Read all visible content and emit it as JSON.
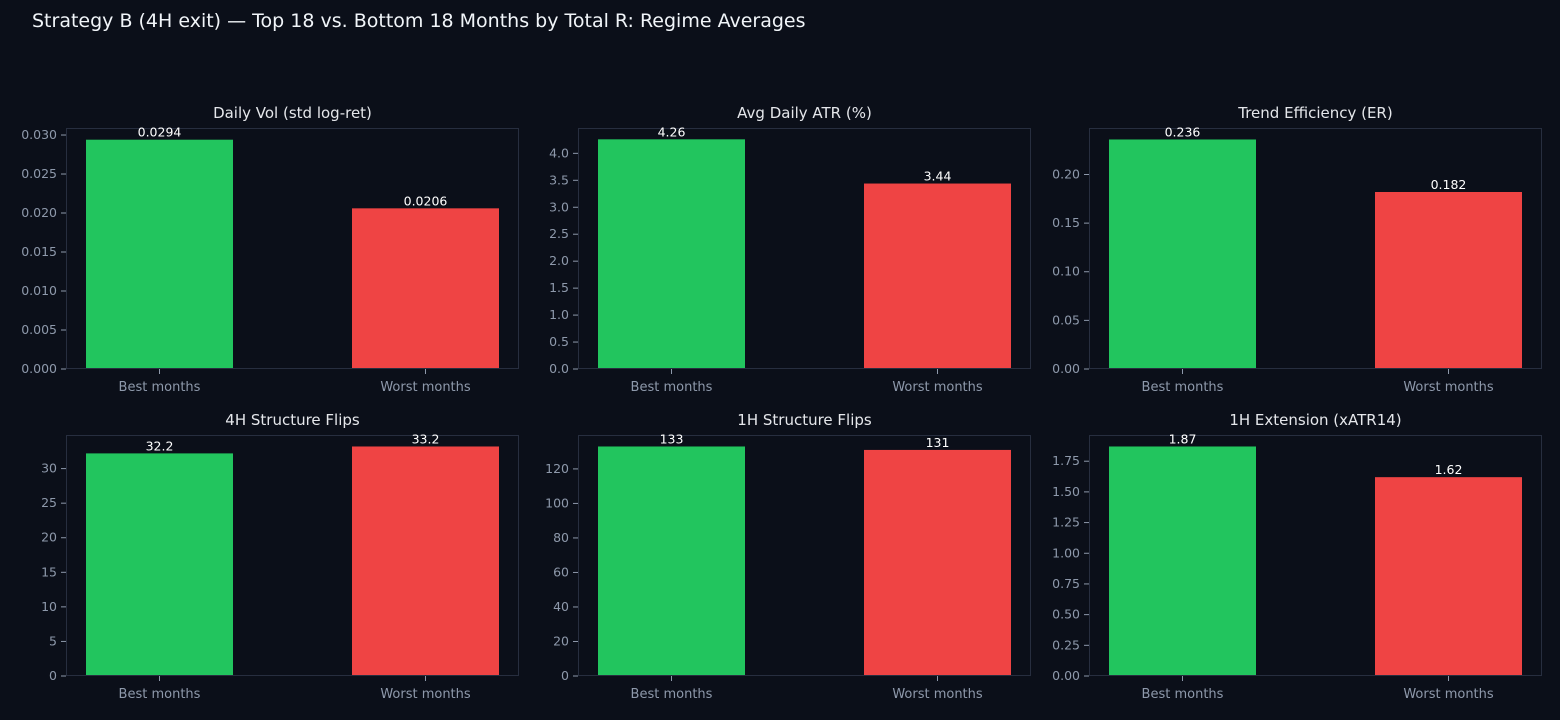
{
  "suptitle": "Strategy B (4H exit) — Top 18 vs. Bottom 18 Months by Total R: Regime Averages",
  "colors": {
    "background": "#0b0f19",
    "axes_face": "#0b0f19",
    "axes_edge": "#272e3f",
    "tick_label": "#8e99ab",
    "title": "#e5e7eb",
    "value_label": "#ffffff",
    "best": "#22c55e",
    "worst": "#ef4444"
  },
  "chart_data": [
    {
      "type": "bar",
      "title": "Daily Vol (std log-ret)",
      "categories": [
        "Best months",
        "Worst months"
      ],
      "values": [
        0.0294,
        0.0206
      ],
      "value_labels": [
        "0.0294",
        "0.0206"
      ],
      "yticks": [
        0,
        0.005,
        0.01,
        0.015,
        0.02,
        0.025,
        0.03
      ],
      "ytick_labels": [
        "0.000",
        "0.005",
        "0.010",
        "0.015",
        "0.020",
        "0.025",
        "0.030"
      ],
      "ylim": [
        0,
        0.0309
      ],
      "bar_colors": [
        "#22c55e",
        "#ef4444"
      ]
    },
    {
      "type": "bar",
      "title": "Avg Daily ATR (%)",
      "categories": [
        "Best months",
        "Worst months"
      ],
      "values": [
        4.26,
        3.44
      ],
      "value_labels": [
        "4.26",
        "3.44"
      ],
      "yticks": [
        0,
        0.5,
        1,
        1.5,
        2,
        2.5,
        3,
        3.5,
        4
      ],
      "ytick_labels": [
        "0.0",
        "0.5",
        "1.0",
        "1.5",
        "2.0",
        "2.5",
        "3.0",
        "3.5",
        "4.0"
      ],
      "ylim": [
        0,
        4.47
      ],
      "bar_colors": [
        "#22c55e",
        "#ef4444"
      ]
    },
    {
      "type": "bar",
      "title": "Trend Efficiency (ER)",
      "categories": [
        "Best months",
        "Worst months"
      ],
      "values": [
        0.236,
        0.182
      ],
      "value_labels": [
        "0.236",
        "0.182"
      ],
      "yticks": [
        0,
        0.05,
        0.1,
        0.15,
        0.2
      ],
      "ytick_labels": [
        "0.00",
        "0.05",
        "0.10",
        "0.15",
        "0.20"
      ],
      "ylim": [
        0,
        0.2478
      ],
      "bar_colors": [
        "#22c55e",
        "#ef4444"
      ]
    },
    {
      "type": "bar",
      "title": "4H Structure Flips",
      "categories": [
        "Best months",
        "Worst months"
      ],
      "values": [
        32.2,
        33.2
      ],
      "value_labels": [
        "32.2",
        "33.2"
      ],
      "yticks": [
        0,
        5,
        10,
        15,
        20,
        25,
        30
      ],
      "ytick_labels": [
        "0",
        "5",
        "10",
        "15",
        "20",
        "25",
        "30"
      ],
      "ylim": [
        0,
        34.86
      ],
      "bar_colors": [
        "#22c55e",
        "#ef4444"
      ]
    },
    {
      "type": "bar",
      "title": "1H Structure Flips",
      "categories": [
        "Best months",
        "Worst months"
      ],
      "values": [
        133,
        131
      ],
      "value_labels": [
        "133",
        "131"
      ],
      "yticks": [
        0,
        20,
        40,
        60,
        80,
        100,
        120
      ],
      "ytick_labels": [
        "0",
        "20",
        "40",
        "60",
        "80",
        "100",
        "120"
      ],
      "ylim": [
        0,
        139.65
      ],
      "bar_colors": [
        "#22c55e",
        "#ef4444"
      ]
    },
    {
      "type": "bar",
      "title": "1H Extension (xATR14)",
      "categories": [
        "Best months",
        "Worst months"
      ],
      "values": [
        1.87,
        1.62
      ],
      "value_labels": [
        "1.87",
        "1.62"
      ],
      "yticks": [
        0,
        0.25,
        0.5,
        0.75,
        1,
        1.25,
        1.5,
        1.75
      ],
      "ytick_labels": [
        "0.00",
        "0.25",
        "0.50",
        "0.75",
        "1.00",
        "1.25",
        "1.50",
        "1.75"
      ],
      "ylim": [
        0,
        1.9635
      ],
      "bar_colors": [
        "#22c55e",
        "#ef4444"
      ]
    }
  ]
}
